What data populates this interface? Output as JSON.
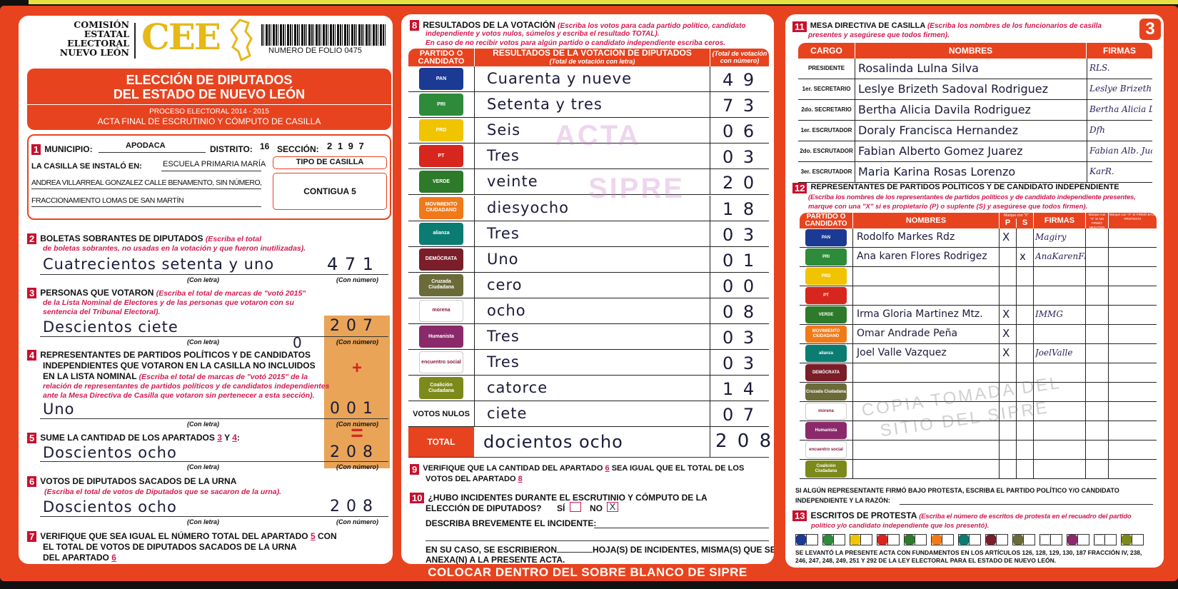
{
  "header": {
    "org_lines": [
      "COMISIÓN",
      "ESTATAL",
      "ELECTORAL",
      "NUEVO LEÓN"
    ],
    "logo_text": "CEE",
    "folio": "NUMERO DE FOLIO 0475",
    "title_line1": "ELECCIÓN DE DIPUTADOS",
    "title_line2": "DEL ESTADO DE NUEVO LEÓN",
    "process": "PROCESO ELECTORAL  2014 - 2015",
    "acta": "ACTA FINAL DE ESCRUTINIO Y CÓMPUTO DE CASILLA"
  },
  "s1": {
    "num": "1",
    "municipio_label": "MUNICIPIO:",
    "municipio": "APODACA",
    "distrito_label": "DISTRITO:",
    "distrito": "16",
    "seccion_label": "SECCIÓN:",
    "seccion": "2 1 9 7",
    "instalo_label": "LA CASILLA SE INSTALÓ EN:",
    "address1": "ESCUELA PRIMARIA MARÍA",
    "address2": "ANDREA VILLARREAL GONZALEZ CALLE BENAMENTO, SIN NÚMERO,",
    "address3": "FRACCIONAMIENTO LOMAS DE SAN MARTÍN",
    "tipo_label": "TIPO DE CASILLA",
    "tipo": "CONTIGUA 5"
  },
  "labels": {
    "con_letra": "(Con letra)",
    "con_numero": "(Con número)",
    "plus": "+",
    "equals": "="
  },
  "s2": {
    "num": "2",
    "title": "BOLETAS SOBRANTES DE DIPUTADOS",
    "inst1": "(Escriba el total",
    "inst2": "de boletas sobrantes, no usadas en la votación y que fueron inutilizadas).",
    "letra": "Cuatrecientos setenta y uno",
    "numero": "4 7 1"
  },
  "s3": {
    "num": "3",
    "title": "PERSONAS QUE VOTARON",
    "inst1": "(Escriba el total de marcas de \"votó 2015\"",
    "inst2": "de la Lista Nominal de Electores y de las personas que votaron con su",
    "inst3": "sentencia del Tribunal Electoral).",
    "letra": "Descientos ciete",
    "numero": "2 0 7",
    "extra": "0"
  },
  "s4": {
    "num": "4",
    "title1": "REPRESENTANTES DE PARTIDOS POLÍTICOS Y DE CANDIDATOS",
    "title2": "INDEPENDIENTES QUE VOTARON EN LA CASILLA NO INCLUIDOS",
    "title3": "EN LA LISTA NOMINAL",
    "inst1": "(Escriba el total de marcas de \"votó 2015\" de la",
    "inst2": "relación de representantes de partidos políticos y de candidatos independientes",
    "inst3": "ante la Mesa Directiva de Casilla que votaron sin pertenecer a esta sección).",
    "letra": "Uno",
    "numero": "0 0 1"
  },
  "s5": {
    "num": "5",
    "title": "SUME LA CANTIDAD DE LOS APARTADOS",
    "a": "3",
    "y": "Y",
    "b": "4",
    "colon": ":",
    "letra": "Doscientos ocho",
    "numero": "2 0 8"
  },
  "s6": {
    "num": "6",
    "title": "VOTOS DE DIPUTADOS SACADOS DE LA URNA",
    "inst": "(Escriba el total de votos de Diputados que se sacaron de la urna).",
    "letra": "Doscientos ocho",
    "numero": "2 0 8"
  },
  "s7": {
    "num": "7",
    "line1a": "VERIFIQUE QUE SEA IGUAL EL NÚMERO TOTAL DEL APARTADO",
    "ref1": "5",
    "line1b": "CON",
    "line2": "EL TOTAL DE VOTOS DE DIPUTADOS SACADOS DE LA URNA",
    "line3": "DEL APARTADO",
    "ref2": "6"
  },
  "s8": {
    "num": "8",
    "title": "RESULTADOS DE LA VOTACIÓN",
    "inst1": "(Escriba los votos para cada partido político, candidato",
    "inst2": "independiente y votos nulos, súmelos y escriba el resultado TOTAL).",
    "inst3": "En caso de no recibir votos para algún partido o candidato independiente escriba ceros.",
    "col_party": "PARTIDO O CANDIDATO",
    "col_letra": "RESULTADOS DE LA VOTACIÓN DE DIPUTADOS",
    "col_letra_sub": "(Total de votación con letra)",
    "col_num": "(Total de votación con número)",
    "rows": [
      {
        "party": "PAN",
        "letra": "Cuarenta y nueve",
        "numero": "4 9"
      },
      {
        "party": "PRI",
        "letra": "Setenta y tres",
        "numero": "7 3"
      },
      {
        "party": "PRD",
        "letra": "Seis",
        "numero": "0 6"
      },
      {
        "party": "PT",
        "letra": "Tres",
        "numero": "0 3"
      },
      {
        "party": "VERDE",
        "letra": "veinte",
        "numero": "2 0"
      },
      {
        "party": "MOVIMIENTO CIUDADANO",
        "letra": "diesyocho",
        "numero": "1 8"
      },
      {
        "party": "alianza",
        "letra": "Tres",
        "numero": "0 3"
      },
      {
        "party": "DEMÓCRATA",
        "letra": "Uno",
        "numero": "0 1"
      },
      {
        "party": "Cruzada Ciudadana",
        "letra": "cero",
        "numero": "0 0"
      },
      {
        "party": "morena",
        "letra": "ocho",
        "numero": "0 8"
      },
      {
        "party": "Humanista",
        "letra": "Tres",
        "numero": "0 3"
      },
      {
        "party": "encuentro social",
        "letra": "Tres",
        "numero": "0 3"
      },
      {
        "party": "Coalición Ciudadana",
        "letra": "catorce",
        "numero": "1 4"
      }
    ],
    "nulos_label": "VOTOS NULOS",
    "nulos_letra": "ciete",
    "nulos_numero": "0 7",
    "total_label": "TOTAL",
    "total_letra": "docientos ocho",
    "total_numero": "2 0 8"
  },
  "s9": {
    "num": "9",
    "line1a": "VERIFIQUE QUE LA CANTIDAD DEL APARTADO",
    "ref1": "6",
    "line1b": "SEA IGUAL QUE EL TOTAL DE LOS",
    "line2": "VOTOS DEL APARTADO",
    "ref2": "8"
  },
  "s10": {
    "num": "10",
    "line1": "¿HUBO INCIDENTES DURANTE EL ESCRUTINIO Y CÓMPUTO DE LA",
    "line2": "ELECCIÓN DE DIPUTADOS?",
    "si": "SÍ",
    "no": "NO",
    "si_checked": false,
    "no_checked": true,
    "mark": "X",
    "describe": "DESCRIBA BREVEMENTE EL INCIDENTE:",
    "caso1a": "EN SU CASO, SE ESCRIBIERON",
    "caso1b": "HOJA(S) DE INCIDENTES, MISMA(S) QUE SE",
    "caso2": "ANEXA(N) A LA PRESENTE ACTA."
  },
  "footer": {
    "text": "COLOCAR DENTRO DEL SOBRE BLANCO DE SIPRE"
  },
  "page_badge": "3",
  "s11": {
    "num": "11",
    "title": "MESA DIRECTIVA DE CASILLA",
    "inst1": "(Escriba los nombres de los funcionarios de casilla",
    "inst2": "presentes y asegúrese que todos firmen).",
    "col_cargo": "CARGO",
    "col_nombres": "NOMBRES",
    "col_firmas": "FIRMAS",
    "rows": [
      {
        "cargo": "PRESIDENTE",
        "nombre": "Rosalinda Lulna Silva",
        "firma": "RLS."
      },
      {
        "cargo": "1er. SECRETARIO",
        "nombre": "Leslye Brizeth Sadoval Rodriguez",
        "firma": "Leslye Brizeth"
      },
      {
        "cargo": "2do. SECRETARIO",
        "nombre": "Bertha Alicia Davila Rodriguez",
        "firma": "Bertha Alicia D."
      },
      {
        "cargo": "1er. ESCRUTADOR",
        "nombre": "Doraly Francisca Hernandez",
        "firma": "Dfh"
      },
      {
        "cargo": "2do. ESCRUTADOR",
        "nombre": "Fabian Alberto Gomez Juarez",
        "firma": "Fabian Alb. Juarez"
      },
      {
        "cargo": "3er. ESCRUTADOR",
        "nombre": "Maria Karina Rosas Lorenzo",
        "firma": "KarR."
      }
    ]
  },
  "s12": {
    "num": "12",
    "title": "REPRESENTANTES DE PARTIDOS POLÍTICOS Y DE CANDIDATO INDEPENDIENTE",
    "inst1": "(Escriba los nombres de los representantes de partidos políticos y de candidato independiente presentes,",
    "inst2": "marque con una \"X\" si es propietario (P) o suplente (S) y asegúrese que todos firmen).",
    "col_party": "PARTIDO O CANDIDATO",
    "col_nombres": "NOMBRES",
    "col_marque": "Marque con \"X\"",
    "col_p": "P",
    "col_s": "S",
    "col_firmas": "FIRMAS",
    "col_protesta_top": "Marque con \"X\" SI NO FIRMÓ",
    "col_negativa": "NEGATIVA",
    "col_protesta": "Marque con \"X\" SI FIRMÓ BAJO PROTESTA",
    "rows": [
      {
        "party": "PAN",
        "nombre": "Rodolfo Markes Rdz",
        "p": "X",
        "s": "",
        "firma": "Magiry"
      },
      {
        "party": "PRI",
        "nombre": "Ana karen Flores Rodrigez",
        "p": "",
        "s": "x",
        "firma": "AnaKarenFlores"
      },
      {
        "party": "PRD",
        "nombre": "",
        "p": "",
        "s": "",
        "firma": ""
      },
      {
        "party": "PT",
        "nombre": "",
        "p": "",
        "s": "",
        "firma": ""
      },
      {
        "party": "VERDE",
        "nombre": "Irma Gloria Martinez Mtz.",
        "p": "X",
        "s": "",
        "firma": "IMMG"
      },
      {
        "party": "MOVIMIENTO CIUDADANO",
        "nombre": "Omar Andrade Peña",
        "p": "X",
        "s": "",
        "firma": ""
      },
      {
        "party": "alianza",
        "nombre": "Joel Valle Vazquez",
        "p": "X",
        "s": "",
        "firma": "JoelValle"
      },
      {
        "party": "DEMÓCRATA",
        "nombre": "",
        "p": "",
        "s": "",
        "firma": ""
      },
      {
        "party": "Cruzada Ciudadana",
        "nombre": "",
        "p": "",
        "s": "",
        "firma": ""
      },
      {
        "party": "morena",
        "nombre": "",
        "p": "",
        "s": "",
        "firma": ""
      },
      {
        "party": "Humanista",
        "nombre": "",
        "p": "",
        "s": "",
        "firma": ""
      },
      {
        "party": "encuentro social",
        "nombre": "",
        "p": "",
        "s": "",
        "firma": ""
      },
      {
        "party": "Coalición Ciudadana",
        "nombre": "",
        "p": "",
        "s": "",
        "firma": ""
      }
    ],
    "protesta1": "SI ALGÚN REPRESENTANTE FIRMÓ BAJO PROTESTA, ESCRIBA EL PARTIDO POLÍTICO Y/O CANDIDATO",
    "protesta2": "INDEPENDIENTE Y LA RAZÓN:"
  },
  "s13": {
    "num": "13",
    "title": "ESCRITOS DE PROTESTA",
    "inst1": "(Escriba el número de escritos de protesta en el recuadro del partido",
    "inst2": "político y/o candidato independiente que los presentó).",
    "boxes": [
      "PAN",
      "PRI",
      "PRD",
      "PT",
      "VERDE",
      "MOVIMIENTO CIUDADANO",
      "alianza",
      "DEMÓCRATA",
      "Cruzada Ciudadana",
      "independiente",
      "Humanista",
      "encuentro social",
      "Coalición Ciudadana"
    ],
    "legal1": "SE LEVANTÓ LA PRESENTE ACTA CON FUNDAMENTOS EN LOS ARTÍCULOS 126, 128, 129, 130, 187 FRACCIÓN IV, 238,",
    "legal2": "246, 247, 248, 249, 251 Y 292 DE LA LEY ELECTORAL PARA EL ESTADO DE NUEVO LEÓN."
  },
  "watermarks": {
    "stamp1": "ACTA",
    "stamp2": "SIPRE",
    "diagonal": "COPIA TOMADA DEL SITIO DEL SIPRE"
  },
  "colors": {
    "frame": "#e8431f",
    "badge": "#c8102e",
    "instruction": "#d21b4f",
    "cee_gold": "#e6b818",
    "sum_column": "#e9a458"
  },
  "party_colors": {
    "PAN": "#1b3a94",
    "PRI": "#2e8b3a",
    "PRD": "#f0c400",
    "PT": "#d7261e",
    "VERDE": "#2d7a2a",
    "MOVIMIENTO CIUDADANO": "#f07a1a",
    "alianza": "#0b7c72",
    "DEMÓCRATA": "#7a1e2a",
    "Cruzada Ciudadana": "#6b6b3a",
    "morena": "#ffffff",
    "Humanista": "#8a2a6a",
    "encuentro social": "#ffffff",
    "Coalición Ciudadana": "#7b8a1a",
    "independiente": "#ffffff"
  }
}
